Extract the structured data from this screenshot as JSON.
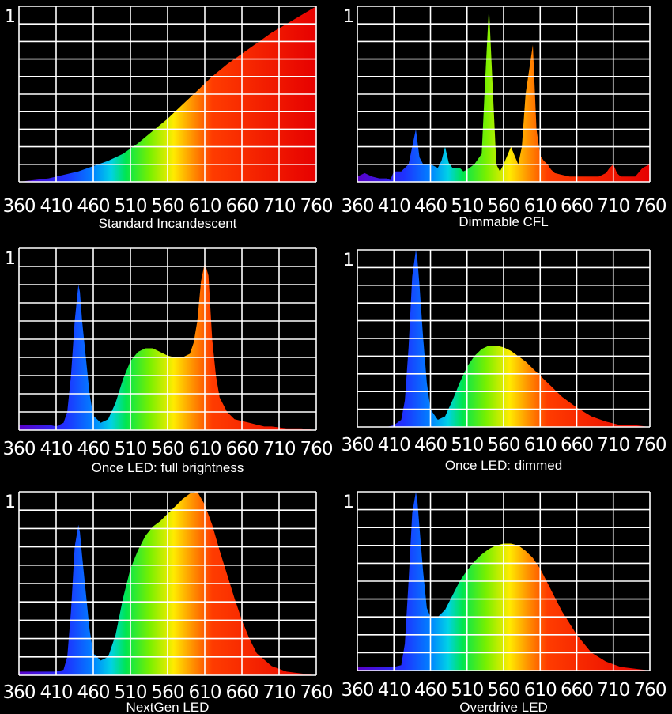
{
  "axis": {
    "x_ticks": [
      "360",
      "410",
      "460",
      "510",
      "560",
      "610",
      "660",
      "710",
      "760"
    ],
    "y_tick": "1",
    "xlim": [
      360,
      760
    ],
    "ylim": [
      0,
      1
    ]
  },
  "chart_data": [
    {
      "type": "area",
      "caption": "Standard Incandescent",
      "x": [
        360,
        380,
        400,
        420,
        440,
        460,
        480,
        500,
        520,
        540,
        560,
        580,
        600,
        620,
        640,
        660,
        680,
        700,
        720,
        740,
        760
      ],
      "y": [
        0,
        0.01,
        0.02,
        0.04,
        0.06,
        0.09,
        0.12,
        0.16,
        0.22,
        0.29,
        0.36,
        0.44,
        0.52,
        0.6,
        0.67,
        0.73,
        0.79,
        0.85,
        0.9,
        0.95,
        1.0
      ]
    },
    {
      "type": "area",
      "caption": "Dimmable CFL",
      "x": [
        360,
        370,
        380,
        390,
        400,
        405,
        410,
        420,
        425,
        430,
        435,
        440,
        445,
        450,
        460,
        470,
        475,
        480,
        485,
        490,
        500,
        505,
        510,
        520,
        530,
        535,
        540,
        545,
        550,
        555,
        560,
        570,
        575,
        580,
        585,
        590,
        600,
        605,
        610,
        615,
        620,
        625,
        630,
        640,
        650,
        660,
        670,
        680,
        690,
        700,
        705,
        710,
        715,
        720,
        730,
        740,
        750,
        760
      ],
      "y": [
        0.03,
        0.05,
        0.03,
        0.02,
        0.02,
        0.01,
        0.06,
        0.06,
        0.08,
        0.1,
        0.2,
        0.3,
        0.14,
        0.1,
        0.1,
        0.08,
        0.12,
        0.2,
        0.11,
        0.08,
        0.08,
        0.06,
        0.07,
        0.1,
        0.16,
        0.6,
        1.0,
        0.55,
        0.1,
        0.06,
        0.1,
        0.2,
        0.15,
        0.1,
        0.2,
        0.5,
        0.78,
        0.3,
        0.15,
        0.12,
        0.1,
        0.07,
        0.05,
        0.04,
        0.03,
        0.03,
        0.03,
        0.03,
        0.03,
        0.05,
        0.08,
        0.1,
        0.05,
        0.03,
        0.03,
        0.03,
        0.08,
        0.1
      ]
    },
    {
      "type": "area",
      "caption": "Once LED: full brightness",
      "x": [
        360,
        380,
        400,
        410,
        420,
        425,
        430,
        435,
        440,
        442,
        445,
        450,
        455,
        460,
        470,
        480,
        490,
        500,
        510,
        520,
        530,
        540,
        550,
        560,
        570,
        580,
        590,
        595,
        600,
        605,
        610,
        615,
        620,
        625,
        630,
        640,
        650,
        660,
        670,
        680,
        690,
        700,
        720,
        740,
        760
      ],
      "y": [
        0.03,
        0.03,
        0.03,
        0.02,
        0.04,
        0.1,
        0.3,
        0.6,
        0.8,
        0.76,
        0.6,
        0.4,
        0.2,
        0.08,
        0.04,
        0.06,
        0.15,
        0.28,
        0.38,
        0.43,
        0.45,
        0.45,
        0.43,
        0.41,
        0.4,
        0.4,
        0.42,
        0.48,
        0.6,
        0.82,
        0.92,
        0.85,
        0.5,
        0.3,
        0.18,
        0.1,
        0.06,
        0.05,
        0.04,
        0.03,
        0.02,
        0.02,
        0.01,
        0.01,
        0
      ]
    },
    {
      "type": "area",
      "caption": "Once LED: dimmed",
      "x": [
        360,
        400,
        410,
        420,
        425,
        430,
        435,
        440,
        442,
        445,
        450,
        455,
        460,
        470,
        480,
        490,
        500,
        510,
        520,
        530,
        540,
        550,
        560,
        570,
        580,
        590,
        600,
        620,
        640,
        660,
        680,
        700,
        720,
        740,
        760
      ],
      "y": [
        0,
        0,
        0.01,
        0.04,
        0.15,
        0.45,
        0.85,
        1.0,
        0.95,
        0.8,
        0.5,
        0.25,
        0.1,
        0.04,
        0.06,
        0.15,
        0.25,
        0.34,
        0.4,
        0.44,
        0.46,
        0.46,
        0.45,
        0.43,
        0.4,
        0.37,
        0.33,
        0.25,
        0.17,
        0.11,
        0.06,
        0.03,
        0.01,
        0.01,
        0
      ]
    },
    {
      "type": "area",
      "caption": "NextGen LED",
      "x": [
        360,
        400,
        410,
        420,
        425,
        430,
        435,
        440,
        442,
        445,
        450,
        455,
        460,
        470,
        480,
        490,
        500,
        510,
        520,
        530,
        540,
        550,
        560,
        570,
        580,
        590,
        600,
        610,
        620,
        630,
        640,
        650,
        660,
        670,
        680,
        700,
        720,
        740,
        760
      ],
      "y": [
        0.02,
        0.02,
        0.02,
        0.03,
        0.1,
        0.35,
        0.7,
        0.82,
        0.78,
        0.65,
        0.45,
        0.25,
        0.12,
        0.08,
        0.1,
        0.22,
        0.42,
        0.58,
        0.68,
        0.76,
        0.81,
        0.84,
        0.88,
        0.92,
        0.96,
        0.99,
        1.0,
        0.93,
        0.82,
        0.68,
        0.55,
        0.42,
        0.3,
        0.2,
        0.12,
        0.05,
        0.02,
        0.01,
        0
      ]
    },
    {
      "type": "area",
      "caption": "Overdrive LED",
      "x": [
        360,
        400,
        410,
        420,
        425,
        430,
        435,
        440,
        442,
        445,
        450,
        455,
        460,
        470,
        480,
        490,
        500,
        510,
        520,
        530,
        540,
        550,
        560,
        570,
        580,
        590,
        600,
        610,
        620,
        640,
        660,
        680,
        700,
        720,
        740,
        760
      ],
      "y": [
        0.02,
        0.02,
        0.02,
        0.03,
        0.15,
        0.5,
        0.88,
        1.0,
        0.95,
        0.8,
        0.55,
        0.35,
        0.3,
        0.3,
        0.34,
        0.42,
        0.5,
        0.56,
        0.61,
        0.65,
        0.68,
        0.7,
        0.71,
        0.71,
        0.7,
        0.67,
        0.63,
        0.57,
        0.49,
        0.33,
        0.2,
        0.1,
        0.05,
        0.02,
        0.01,
        0
      ]
    }
  ]
}
